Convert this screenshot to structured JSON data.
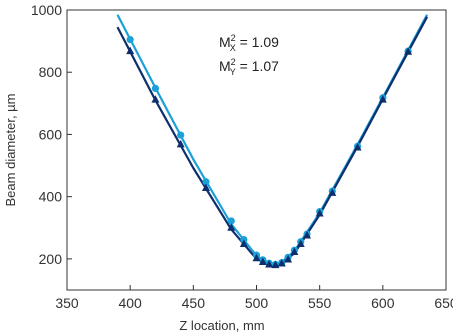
{
  "chart_data": {
    "type": "scatter",
    "xlabel": "Z location, mm",
    "ylabel": "Beam diameter, µm",
    "xlim": [
      350,
      650
    ],
    "ylim": [
      100,
      1000
    ],
    "xticks": [
      350,
      400,
      450,
      500,
      550,
      600,
      650
    ],
    "yticks": [
      200,
      400,
      600,
      800,
      1000
    ],
    "grid": false,
    "annotation": {
      "line1": {
        "M": "M",
        "sup": "2",
        "sub": "X",
        "rest": " = 1.09"
      },
      "line2": {
        "M": "M",
        "sup": "2",
        "sub": "Y",
        "rest": " = 1.07"
      }
    },
    "colors": {
      "x_series": "#1ba1d8",
      "y_series": "#0d2f6e",
      "axis": "#333333"
    },
    "series": [
      {
        "marker": "circle",
        "color": "#1ba1d8",
        "points": [
          [
            400,
            905
          ],
          [
            420,
            748
          ],
          [
            440,
            598
          ],
          [
            460,
            448
          ],
          [
            480,
            322
          ],
          [
            490,
            262
          ],
          [
            500,
            212
          ],
          [
            505,
            197
          ],
          [
            510,
            186
          ],
          [
            515,
            182
          ],
          [
            520,
            188
          ],
          [
            525,
            205
          ],
          [
            530,
            228
          ],
          [
            535,
            255
          ],
          [
            540,
            280
          ],
          [
            550,
            352
          ],
          [
            560,
            418
          ],
          [
            580,
            562
          ],
          [
            600,
            718
          ],
          [
            620,
            868
          ]
        ],
        "fit": [
          [
            390,
            985
          ],
          [
            420,
            750
          ],
          [
            450,
            520
          ],
          [
            480,
            312
          ],
          [
            500,
            210
          ],
          [
            510,
            186
          ],
          [
            515,
            183
          ],
          [
            520,
            190
          ],
          [
            530,
            225
          ],
          [
            550,
            348
          ],
          [
            580,
            568
          ],
          [
            610,
            795
          ],
          [
            635,
            985
          ]
        ]
      },
      {
        "marker": "triangle",
        "color": "#0d2f6e",
        "points": [
          [
            400,
            868
          ],
          [
            420,
            712
          ],
          [
            440,
            568
          ],
          [
            460,
            428
          ],
          [
            480,
            300
          ],
          [
            490,
            248
          ],
          [
            500,
            202
          ],
          [
            505,
            190
          ],
          [
            510,
            182
          ],
          [
            515,
            180
          ],
          [
            520,
            185
          ],
          [
            525,
            198
          ],
          [
            530,
            222
          ],
          [
            535,
            248
          ],
          [
            540,
            275
          ],
          [
            550,
            346
          ],
          [
            560,
            412
          ],
          [
            580,
            558
          ],
          [
            600,
            712
          ],
          [
            620,
            866
          ]
        ],
        "fit": [
          [
            390,
            945
          ],
          [
            420,
            710
          ],
          [
            450,
            492
          ],
          [
            480,
            295
          ],
          [
            500,
            200
          ],
          [
            510,
            182
          ],
          [
            515,
            180
          ],
          [
            520,
            186
          ],
          [
            530,
            218
          ],
          [
            550,
            342
          ],
          [
            580,
            562
          ],
          [
            610,
            790
          ],
          [
            635,
            978
          ]
        ]
      }
    ]
  }
}
